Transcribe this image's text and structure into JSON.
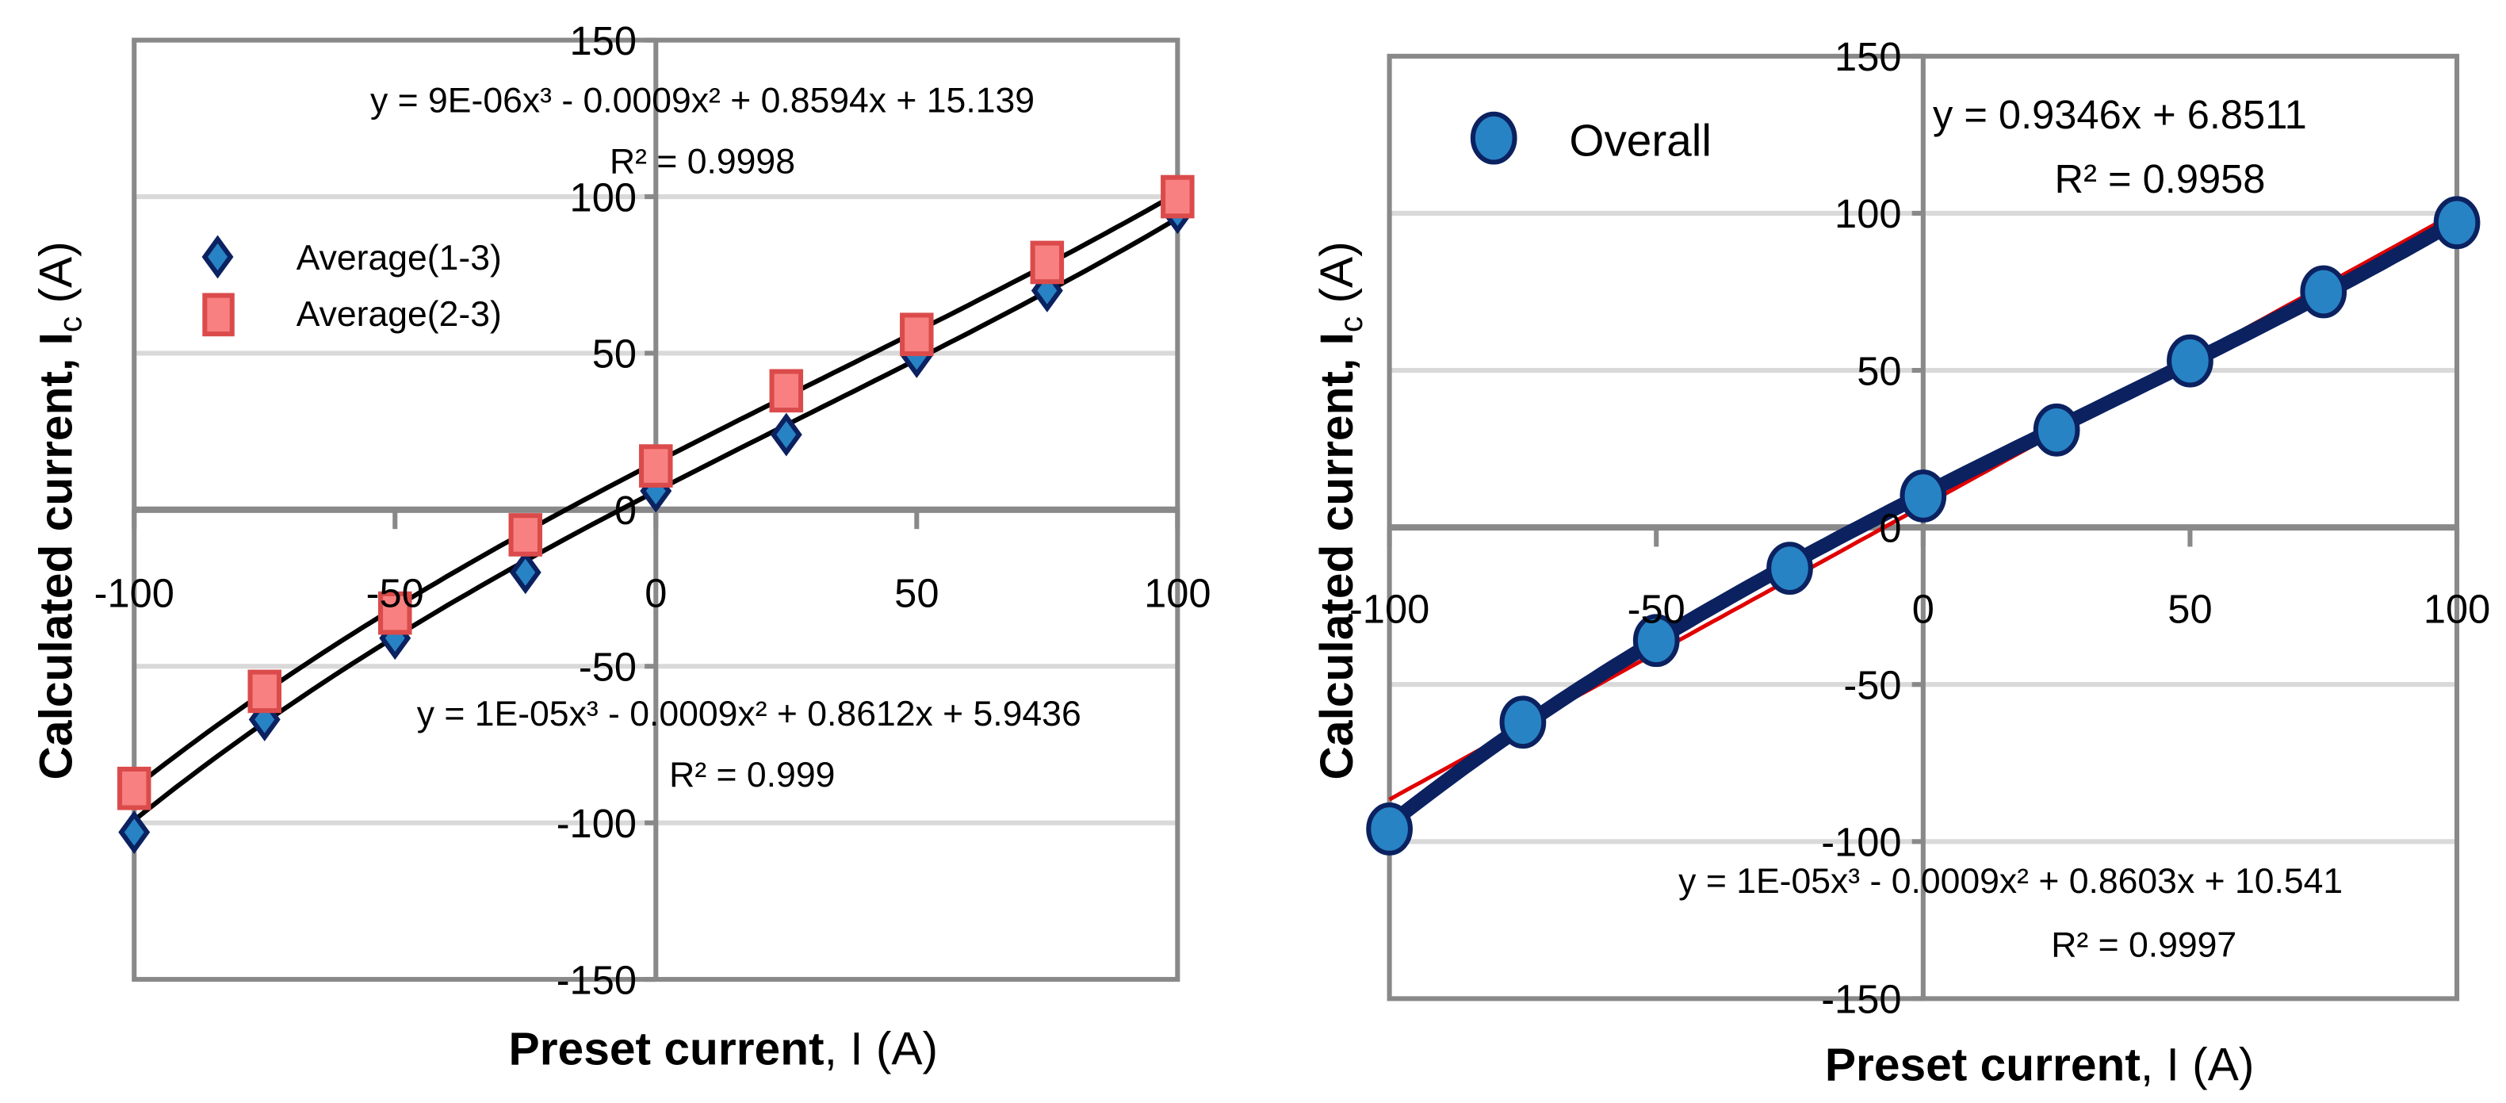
{
  "colors": {
    "axis": "#898989",
    "grid": "#d9d9d9",
    "avg13_fill": "#2783c4",
    "avg13_edge": "#0b2160",
    "avg23_fill": "#f88080",
    "avg23_edge": "#db4b4b",
    "overall_fill": "#2783c4",
    "overall_edge": "#0b2160",
    "fit_black": "#000000",
    "fit_red": "#e00000",
    "fit_navy": "#0b2160"
  },
  "chart_data": [
    {
      "type": "scatter",
      "xlabel": {
        "main": "Preset current",
        "rest": ", I (A)"
      },
      "ylabel": {
        "main": "Calculated current, ",
        "var": "I",
        "sub": "c",
        "unit": " (A)"
      },
      "xlim": [
        -100,
        100
      ],
      "ylim": [
        -150,
        150
      ],
      "x_ticks": [
        "-100",
        "-50",
        "0",
        "50",
        "100"
      ],
      "y_ticks": [
        "150",
        "100",
        "50",
        "0",
        "-50",
        "-100",
        "-150"
      ],
      "grid": true,
      "legend_position": "top-left",
      "series": [
        {
          "name": "Average(1-3)",
          "marker": "diamond",
          "x": [
            -100,
            -75,
            -50,
            -25,
            0,
            25,
            50,
            75,
            100
          ],
          "y": [
            -103,
            -67,
            -41,
            -20,
            6,
            24,
            49,
            70,
            95
          ],
          "trendline": {
            "type": "poly3",
            "coefficients": [
              1e-05,
              -0.0009,
              0.8612,
              5.9436
            ],
            "equation": "y = 1E-05x³ - 0.0009x² + 0.8612x + 5.9436",
            "r2": "R² = 0.999"
          }
        },
        {
          "name": "Average(2-3)",
          "marker": "square",
          "x": [
            -100,
            -75,
            -50,
            -25,
            0,
            25,
            50,
            75,
            100
          ],
          "y": [
            -89,
            -58,
            -33,
            -8,
            14,
            38,
            56,
            79,
            100
          ],
          "trendline": {
            "type": "poly3",
            "coefficients": [
              9e-06,
              -0.0009,
              0.8594,
              15.139
            ],
            "equation": "y = 9E-06x³ - 0.0009x² + 0.8594x + 15.139",
            "r2": "R² = 0.9998"
          }
        }
      ]
    },
    {
      "type": "scatter",
      "xlabel": {
        "main": "Preset current",
        "rest": ", I (A)"
      },
      "ylabel": {
        "main": "Calculated current, ",
        "var": "I",
        "sub": "c",
        "unit": " (A)"
      },
      "xlim": [
        -100,
        100
      ],
      "ylim": [
        -150,
        150
      ],
      "x_ticks": [
        "-100",
        "-50",
        "0",
        "50",
        "100"
      ],
      "y_ticks": [
        "150",
        "100",
        "50",
        "0",
        "-50",
        "-100",
        "-150"
      ],
      "grid": true,
      "legend_position": "top-left",
      "series": [
        {
          "name": "Overall",
          "marker": "circle",
          "x": [
            -100,
            -75,
            -50,
            -25,
            0,
            25,
            50,
            75,
            100
          ],
          "y": [
            -96,
            -62,
            -36,
            -13,
            10,
            31,
            53,
            75,
            97
          ],
          "trendlines": [
            {
              "type": "linear",
              "coefficients": [
                0.9346,
                6.8511
              ],
              "equation": "y = 0.9346x + 6.8511",
              "r2": "R² = 0.9958"
            },
            {
              "type": "poly3",
              "coefficients": [
                1e-05,
                -0.0009,
                0.8603,
                10.541
              ],
              "equation": "y = 1E-05x³ - 0.0009x² + 0.8603x + 10.541",
              "r2": "R² = 0.9997"
            }
          ]
        }
      ]
    }
  ]
}
